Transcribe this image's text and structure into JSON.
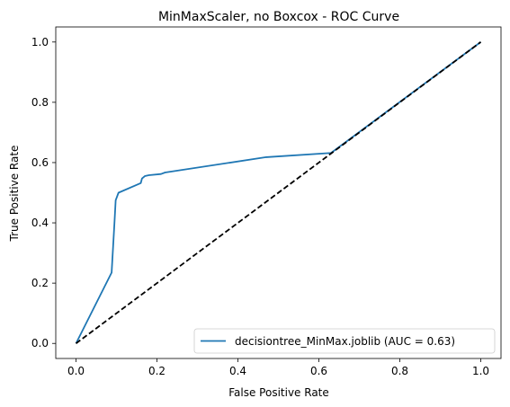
{
  "chart_data": {
    "type": "line",
    "title": "MinMaxScaler, no Boxcox - ROC Curve",
    "xlabel": "False Positive Rate",
    "ylabel": "True Positive Rate",
    "xlim": [
      -0.05,
      1.05
    ],
    "ylim": [
      -0.05,
      1.05
    ],
    "xticks": [
      "0.0",
      "0.2",
      "0.4",
      "0.6",
      "0.8",
      "1.0"
    ],
    "yticks": [
      "0.0",
      "0.2",
      "0.4",
      "0.6",
      "0.8",
      "1.0"
    ],
    "grid": false,
    "legend_position": "lower-right",
    "series": [
      {
        "name": "decisiontree_MinMax.joblib (AUC = 0.63)",
        "color": "#1f77b4",
        "style": "solid",
        "x": [
          0.0,
          0.088,
          0.095,
          0.098,
          0.105,
          0.16,
          0.163,
          0.17,
          0.18,
          0.21,
          0.22,
          0.47,
          0.63,
          1.0
        ],
        "y": [
          0.0,
          0.235,
          0.4,
          0.475,
          0.5,
          0.532,
          0.547,
          0.555,
          0.558,
          0.562,
          0.567,
          0.618,
          0.632,
          1.0
        ]
      },
      {
        "color": "#000000",
        "style": "dashed",
        "x": [
          0.0,
          1.0
        ],
        "y": [
          0.0,
          1.0
        ]
      }
    ]
  }
}
